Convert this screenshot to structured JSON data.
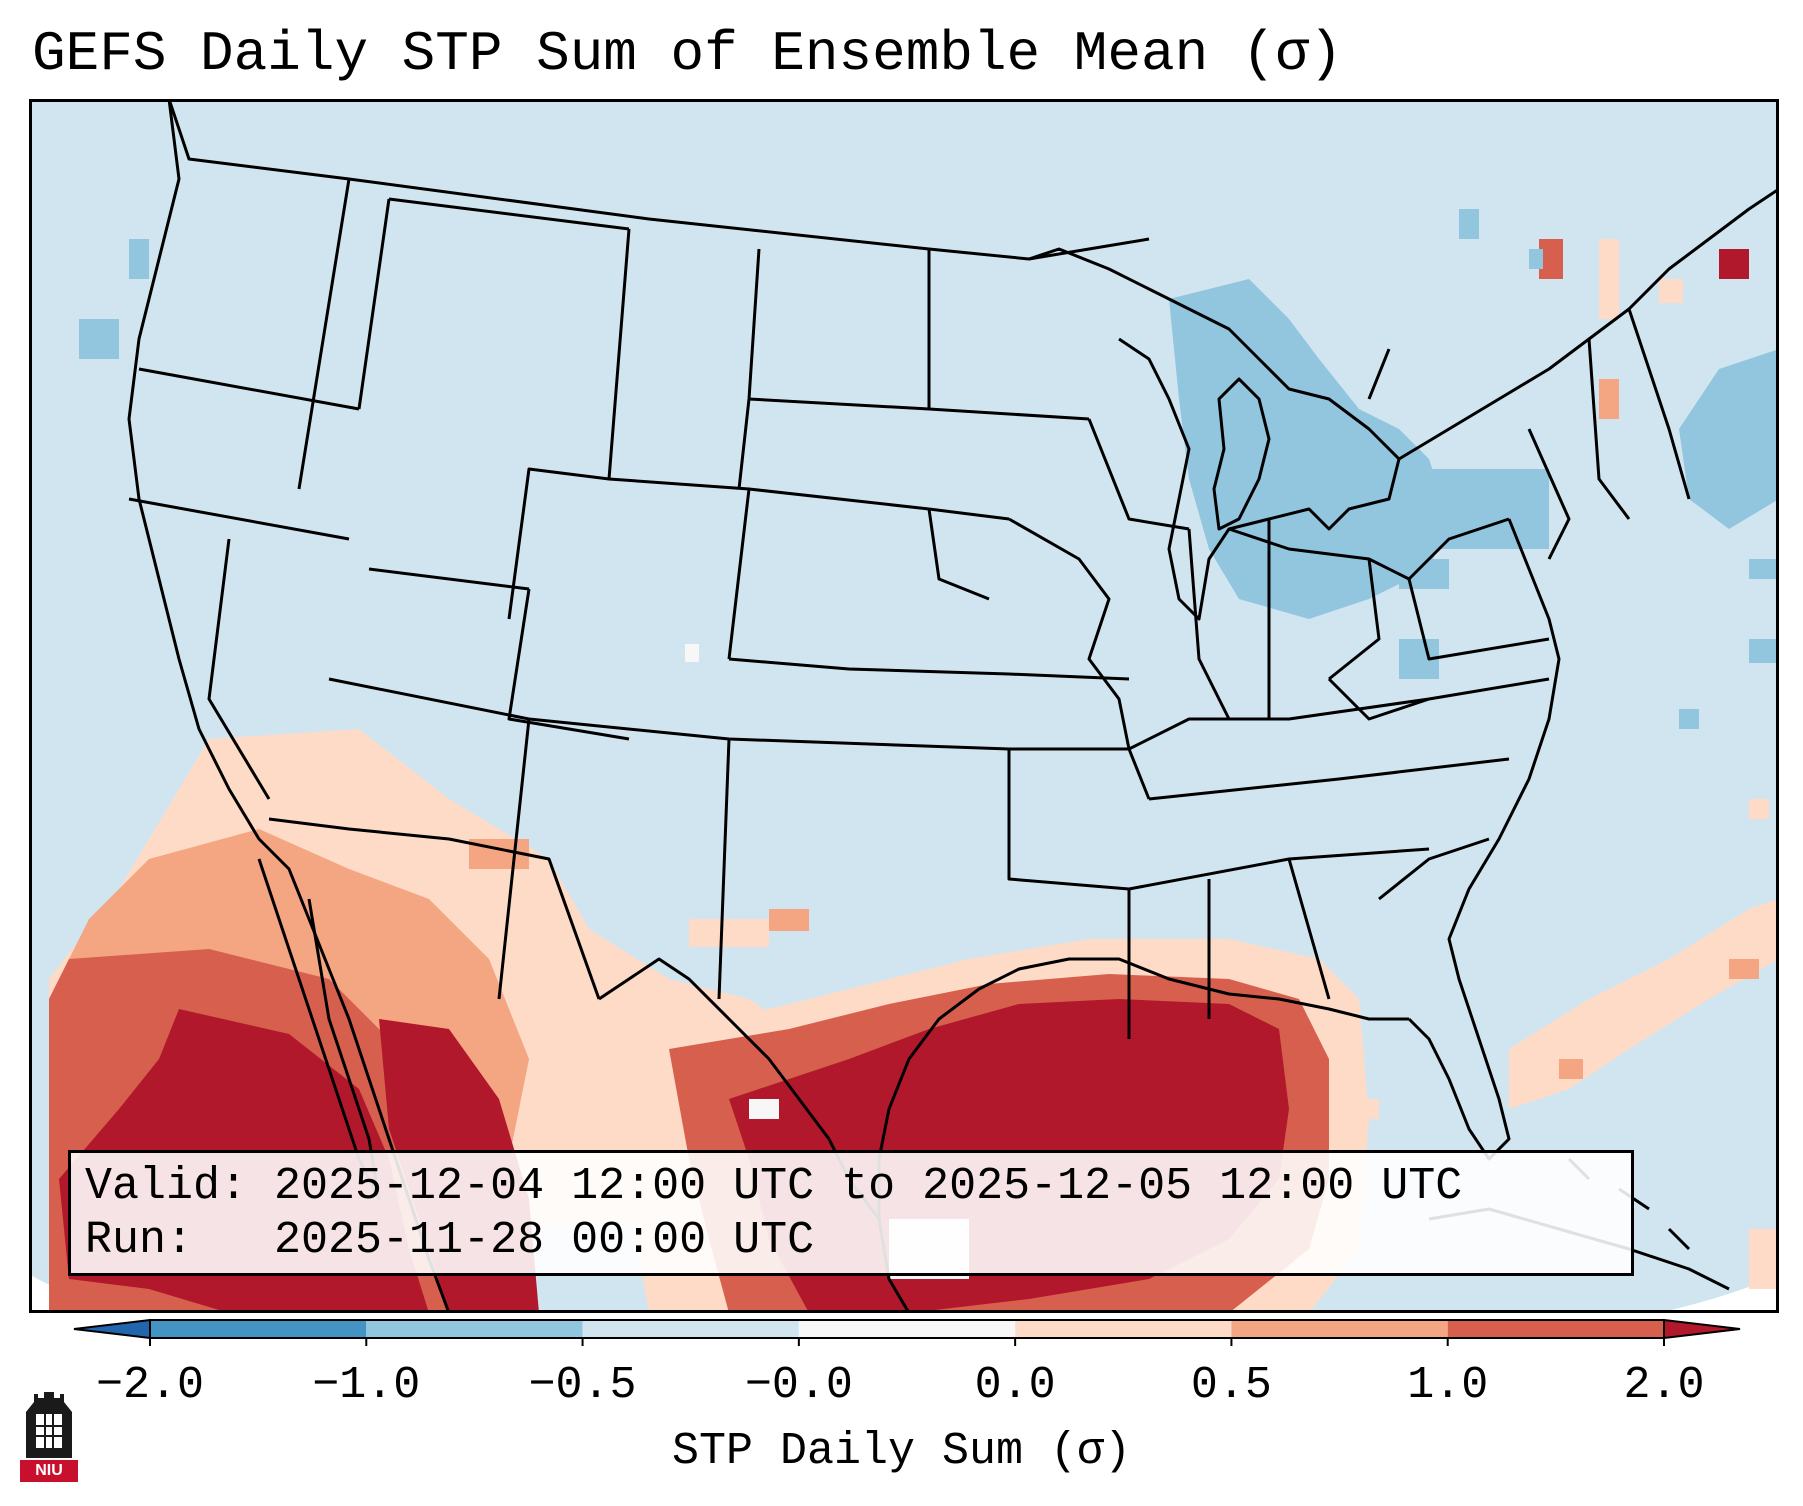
{
  "title": "GEFS Daily STP Sum of Ensemble Mean (σ)",
  "info_box": {
    "valid_line": "Valid: 2025-12-04 12:00 UTC to 2025-12-05 12:00 UTC",
    "run_line": "Run:   2025-11-28 00:00 UTC"
  },
  "colorbar": {
    "label": "STP Daily Sum (σ)",
    "ticks": [
      "−2.0",
      "−1.0",
      "−0.5",
      "−0.0",
      "0.0",
      "0.5",
      "1.0",
      "2.0"
    ],
    "bins": [
      {
        "range": "-2.0 to -1.0",
        "color": "#4393c3"
      },
      {
        "range": "-1.0 to -0.5",
        "color": "#92c5de"
      },
      {
        "range": "-0.5 to -0.0",
        "color": "#d1e5f0"
      },
      {
        "range": "-0.0 to 0.0",
        "color": "#f7f7f7"
      },
      {
        "range": "0.0 to 0.5",
        "color": "#fddbc7"
      },
      {
        "range": "0.5 to 1.0",
        "color": "#f4a582"
      },
      {
        "range": "1.0 to 2.0",
        "color": "#d6604d"
      }
    ],
    "under_color": "#2166ac",
    "over_color": "#b2182b"
  },
  "map": {
    "background_color": "#d1e5f0",
    "regions": [
      {
        "name": "gulf-of-mexico-max",
        "level": "above 2.0",
        "color": "#b2182b"
      },
      {
        "name": "mexico-pacific-high",
        "level": "above 2.0",
        "color": "#b2182b"
      },
      {
        "name": "gulf-moderate-ring",
        "level": "1.0 to 2.0",
        "color": "#d6604d"
      },
      {
        "name": "southwest-light",
        "level": "0.0 to 0.5",
        "color": "#fddbc7"
      },
      {
        "name": "atlantic-streak",
        "level": "0.0 to 0.5",
        "color": "#fddbc7"
      },
      {
        "name": "great-lakes-negative",
        "level": "-1.0 to -0.5",
        "color": "#92c5de"
      },
      {
        "name": "new-england-negative",
        "level": "-1.0 to -0.5",
        "color": "#92c5de"
      }
    ],
    "logo_text": "NIU"
  }
}
